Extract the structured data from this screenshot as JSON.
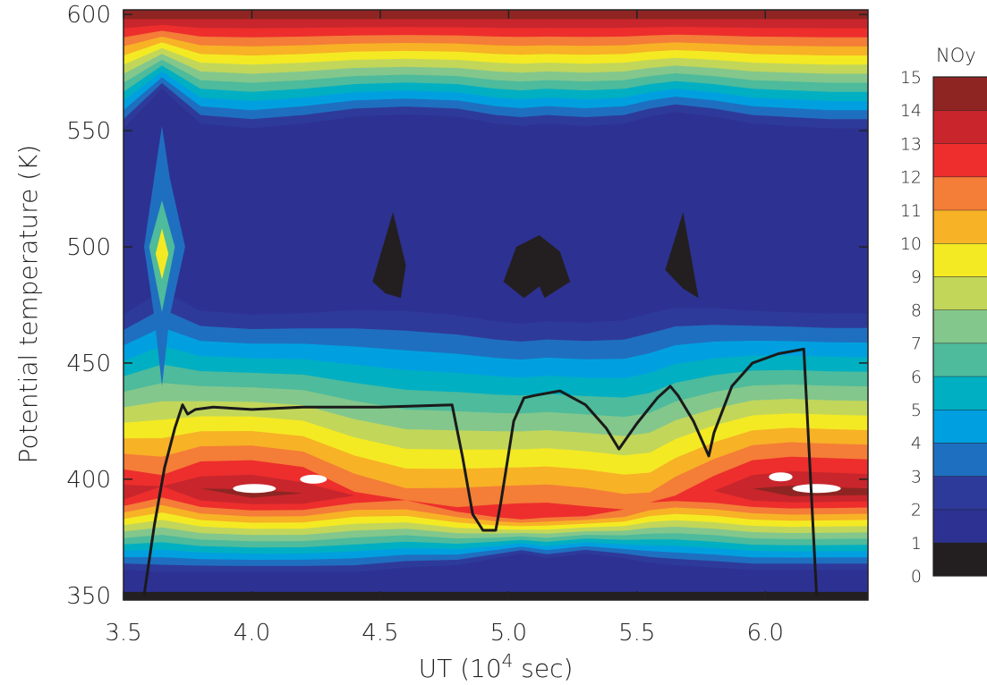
{
  "chart_data": {
    "type": "heatmap",
    "title": "",
    "xlabel": {
      "prefix": "UT (10",
      "exp": "4",
      "suffix": " sec)"
    },
    "ylabel": "Potential temperature (K)",
    "xlim": [
      3.5,
      6.4
    ],
    "ylim": [
      348,
      602
    ],
    "x_ticks": [
      3.5,
      4.0,
      4.5,
      5.0,
      5.5,
      6.0
    ],
    "x_tick_labels": [
      "3.5",
      "4.0",
      "4.5",
      "5.0",
      "5.5",
      "6.0"
    ],
    "y_ticks": [
      350,
      400,
      450,
      500,
      550,
      600
    ],
    "y_tick_labels": [
      "350",
      "400",
      "450",
      "500",
      "550",
      "600"
    ],
    "colorbar": {
      "title": "NOy",
      "levels": [
        0,
        1,
        2,
        3,
        4,
        5,
        6,
        7,
        8,
        9,
        10,
        11,
        12,
        13,
        14,
        15
      ],
      "colors": [
        "#231f20",
        "#2d3192",
        "#2e3a99",
        "#1f6fc0",
        "#00a0e0",
        "#00afc2",
        "#4dbb9c",
        "#83c78c",
        "#c2d65a",
        "#f4ea23",
        "#f7b226",
        "#f47d37",
        "#ed2e2d",
        "#c8262c",
        "#8e2523",
        "#ffffff"
      ]
    },
    "contour_profile": {
      "x": [
        3.5,
        3.65,
        3.8,
        4.0,
        4.2,
        4.4,
        4.6,
        4.8,
        4.95,
        5.05,
        5.15,
        5.3,
        5.45,
        5.55,
        5.65,
        5.8,
        5.95,
        6.1,
        6.25,
        6.4
      ],
      "y_floor": [
        361,
        360,
        360,
        360,
        360,
        360,
        362,
        363,
        366,
        368,
        366,
        368,
        366,
        364,
        363,
        362,
        361,
        361,
        361,
        361
      ],
      "y_ceiling": [
        551,
        568,
        553,
        551,
        553,
        556,
        557,
        556,
        553,
        552,
        553,
        552,
        553,
        556,
        558,
        556,
        553,
        552,
        551,
        551
      ],
      "core": [
        13.4,
        12.6,
        13.8,
        14.1,
        13.7,
        12.2,
        11.6,
        12.0,
        12.4,
        12.6,
        12.5,
        12.3,
        11.8,
        11.5,
        12.0,
        12.9,
        13.9,
        14.2,
        14.1,
        14.0
      ],
      "core_theta": [
        395,
        397,
        396,
        395,
        394,
        393,
        391,
        388,
        386,
        385,
        386,
        386,
        387,
        390,
        393,
        395,
        396,
        396,
        396,
        396
      ]
    },
    "series": [
      {
        "x": [
          3.58,
          3.62,
          3.66,
          3.7,
          3.73,
          3.75,
          3.78,
          3.85,
          4.0,
          4.2,
          4.5,
          4.78,
          4.82,
          4.86,
          4.9,
          4.95,
          4.97,
          5.02,
          5.06,
          5.1,
          5.2,
          5.3,
          5.38,
          5.43,
          5.5,
          5.58,
          5.63,
          5.66,
          5.72,
          5.78,
          5.8,
          5.87,
          5.95,
          6.05,
          6.15,
          6.2
        ],
        "y": [
          350,
          380,
          405,
          422,
          432,
          428,
          430,
          431,
          430,
          431,
          431,
          432,
          410,
          385,
          378,
          378,
          390,
          425,
          435,
          436,
          438,
          432,
          422,
          413,
          424,
          435,
          440,
          436,
          425,
          410,
          420,
          440,
          450,
          454,
          456,
          350
        ]
      }
    ]
  }
}
